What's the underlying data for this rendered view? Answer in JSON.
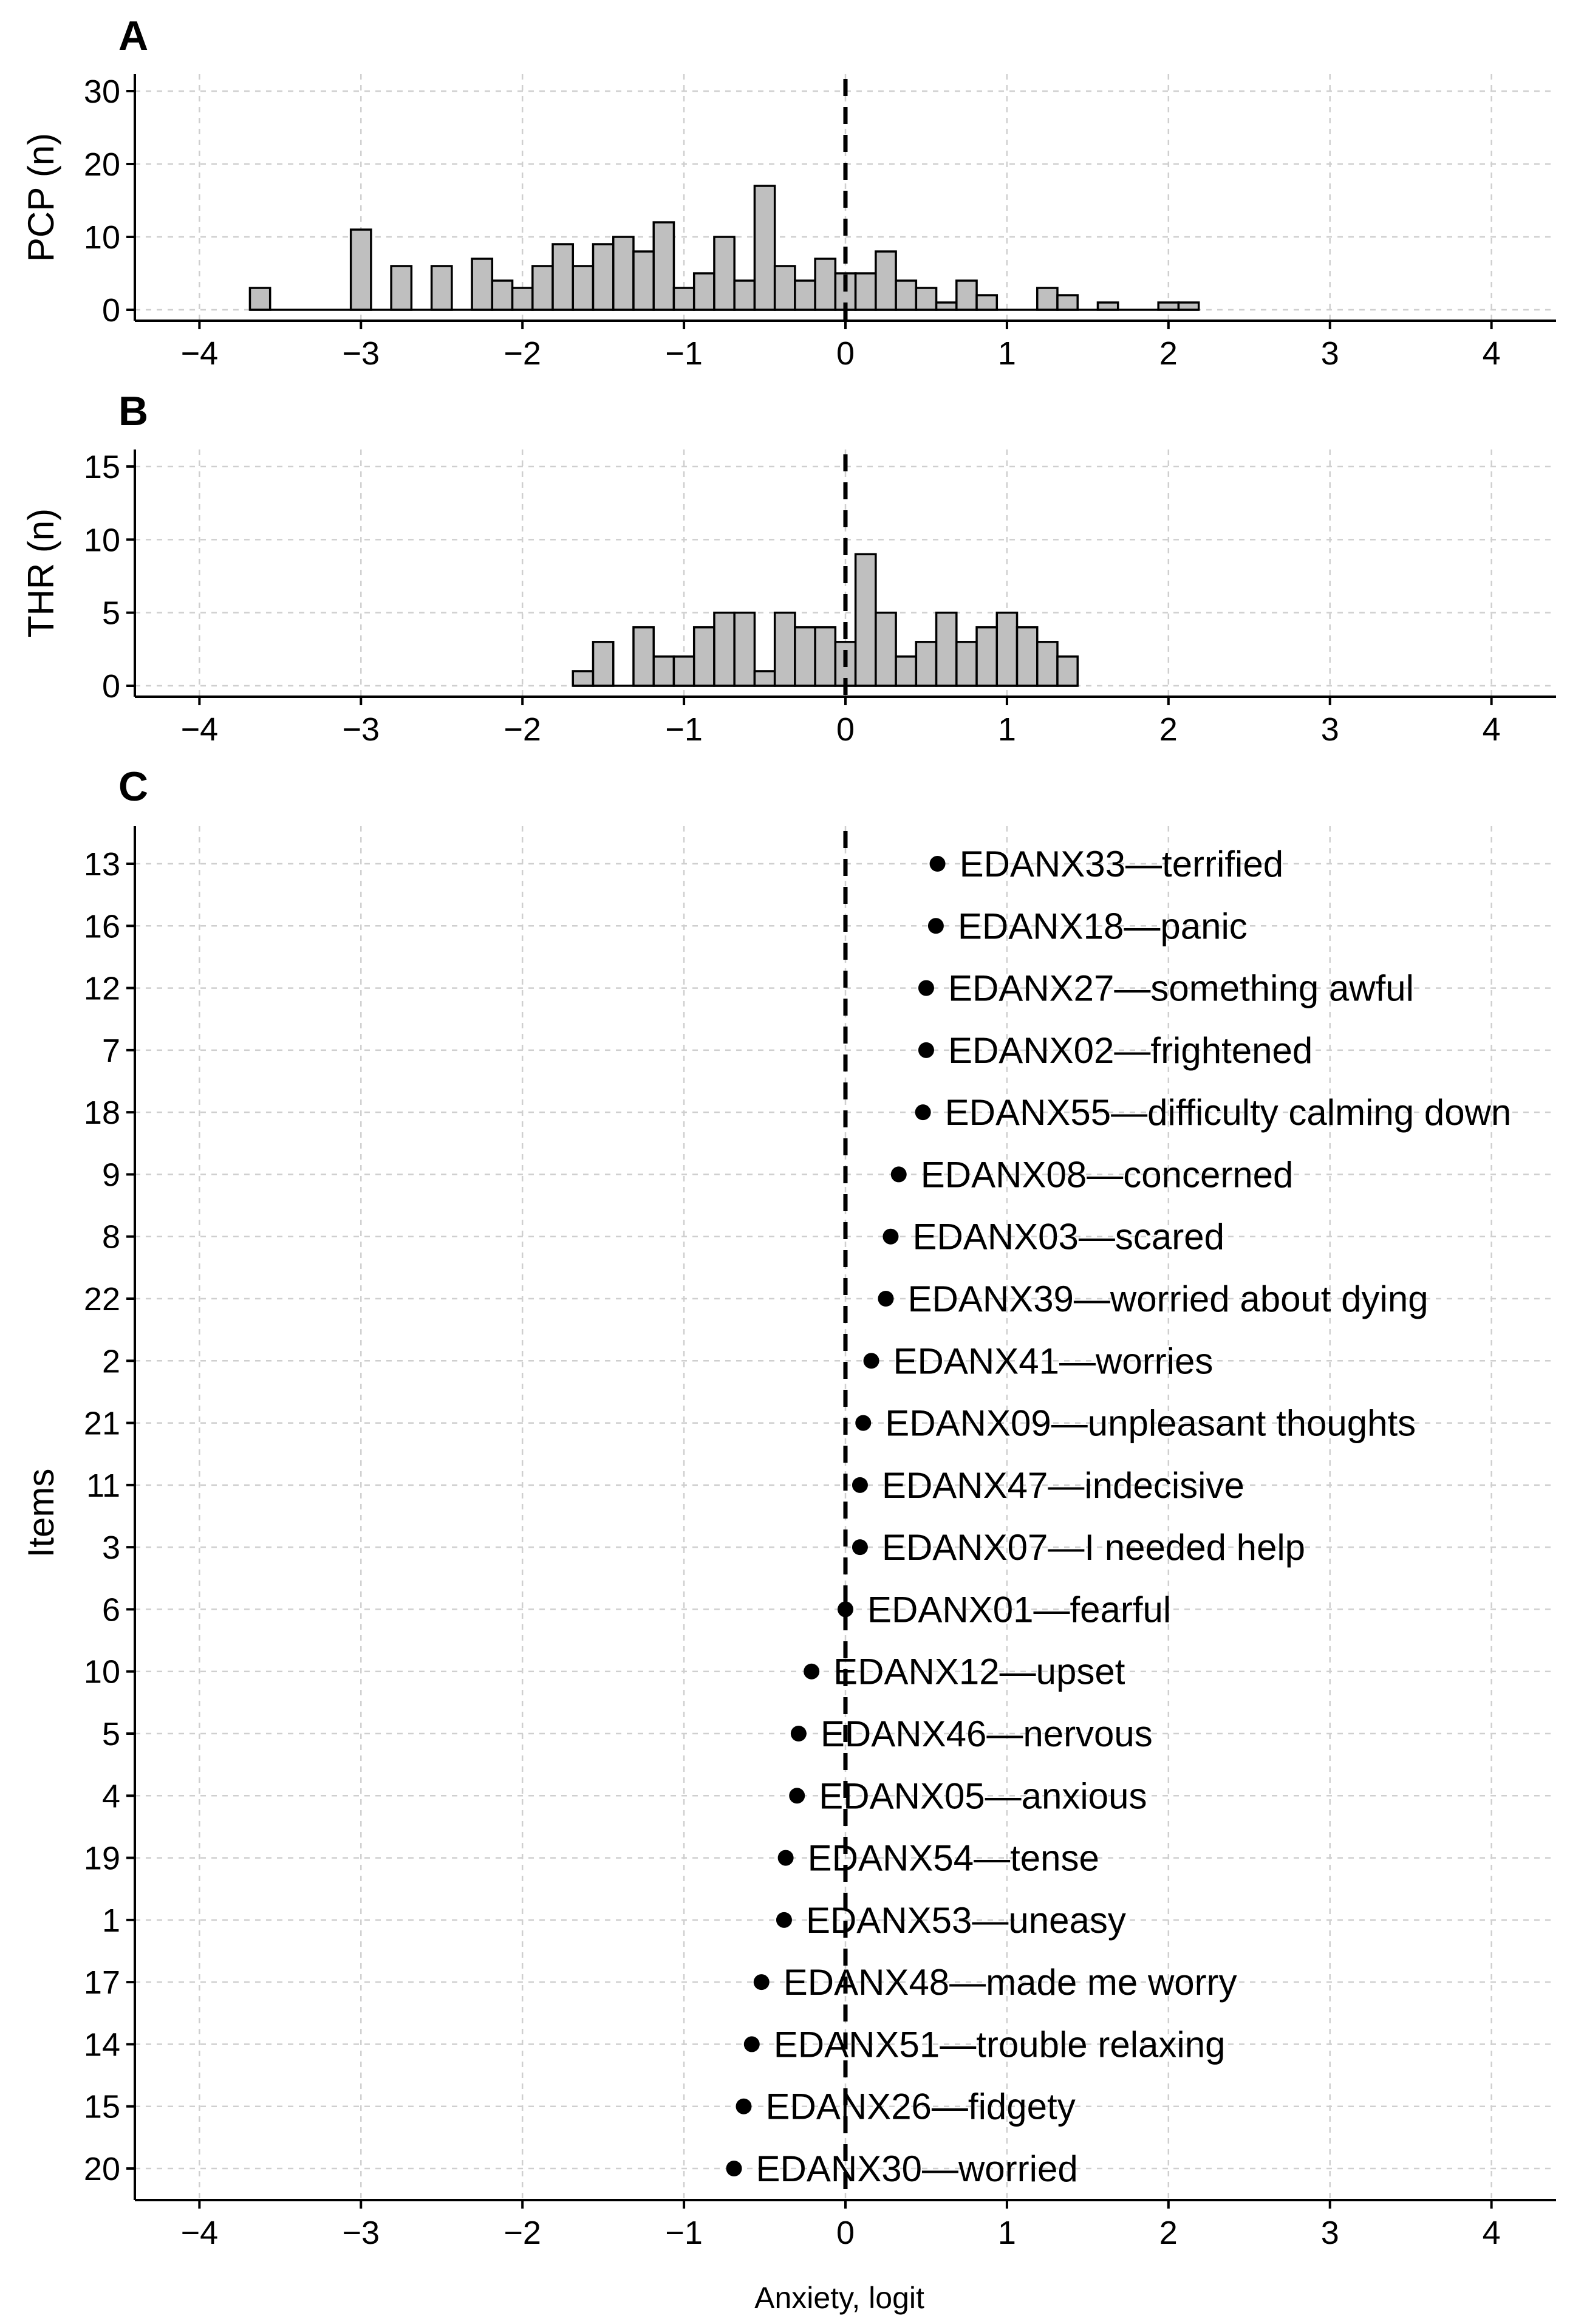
{
  "chart_data": [
    {
      "panel": "A",
      "type": "bar",
      "ylabel": "PCP (n)",
      "xlabel": "",
      "xlim": [
        -4.4,
        4.4
      ],
      "ylim": [
        0,
        30
      ],
      "xticks": [
        -4,
        -3,
        -2,
        -1,
        0,
        1,
        2,
        3,
        4
      ],
      "xtick_labels": [
        "−4",
        "−3",
        "−2",
        "−1",
        "0",
        "1",
        "2",
        "3",
        "4"
      ],
      "yticks": [
        0,
        10,
        20,
        30
      ],
      "ytick_labels": [
        "0",
        "10",
        "20",
        "30"
      ],
      "grid": true,
      "reference_line_x": 0,
      "bin_width": 0.125,
      "bins": [
        {
          "x": -3.625,
          "n": 3
        },
        {
          "x": -3.5,
          "n": 0
        },
        {
          "x": -3.375,
          "n": 0
        },
        {
          "x": -3.25,
          "n": 0
        },
        {
          "x": -3.125,
          "n": 0
        },
        {
          "x": -3.0,
          "n": 11
        },
        {
          "x": -2.875,
          "n": 0
        },
        {
          "x": -2.75,
          "n": 6
        },
        {
          "x": -2.625,
          "n": 0
        },
        {
          "x": -2.5,
          "n": 6
        },
        {
          "x": -2.375,
          "n": 0
        },
        {
          "x": -2.25,
          "n": 7
        },
        {
          "x": -2.125,
          "n": 4
        },
        {
          "x": -2.0,
          "n": 3
        },
        {
          "x": -1.875,
          "n": 6
        },
        {
          "x": -1.75,
          "n": 9
        },
        {
          "x": -1.625,
          "n": 6
        },
        {
          "x": -1.5,
          "n": 9
        },
        {
          "x": -1.375,
          "n": 10
        },
        {
          "x": -1.25,
          "n": 8
        },
        {
          "x": -1.125,
          "n": 12
        },
        {
          "x": -1.0,
          "n": 3
        },
        {
          "x": -0.875,
          "n": 5
        },
        {
          "x": -0.75,
          "n": 10
        },
        {
          "x": -0.625,
          "n": 4
        },
        {
          "x": -0.5,
          "n": 17
        },
        {
          "x": -0.375,
          "n": 6
        },
        {
          "x": -0.25,
          "n": 4
        },
        {
          "x": -0.125,
          "n": 7
        },
        {
          "x": 0.0,
          "n": 5
        },
        {
          "x": 0.125,
          "n": 5
        },
        {
          "x": 0.25,
          "n": 8
        },
        {
          "x": 0.375,
          "n": 4
        },
        {
          "x": 0.5,
          "n": 3
        },
        {
          "x": 0.625,
          "n": 1
        },
        {
          "x": 0.75,
          "n": 4
        },
        {
          "x": 0.875,
          "n": 2
        },
        {
          "x": 1.0,
          "n": 0
        },
        {
          "x": 1.125,
          "n": 0
        },
        {
          "x": 1.25,
          "n": 3
        },
        {
          "x": 1.375,
          "n": 2
        },
        {
          "x": 1.5,
          "n": 0
        },
        {
          "x": 1.625,
          "n": 1
        },
        {
          "x": 1.75,
          "n": 0
        },
        {
          "x": 1.875,
          "n": 0
        },
        {
          "x": 2.0,
          "n": 1
        },
        {
          "x": 2.125,
          "n": 1
        }
      ]
    },
    {
      "panel": "B",
      "type": "bar",
      "ylabel": "THR (n)",
      "xlabel": "",
      "xlim": [
        -4.4,
        4.4
      ],
      "ylim": [
        0,
        15
      ],
      "xticks": [
        -4,
        -3,
        -2,
        -1,
        0,
        1,
        2,
        3,
        4
      ],
      "xtick_labels": [
        "−4",
        "−3",
        "−2",
        "−1",
        "0",
        "1",
        "2",
        "3",
        "4"
      ],
      "yticks": [
        0,
        5,
        10,
        15
      ],
      "ytick_labels": [
        "0",
        "5",
        "10",
        "15"
      ],
      "grid": true,
      "reference_line_x": 0,
      "bin_width": 0.125,
      "bins": [
        {
          "x": -1.625,
          "n": 1
        },
        {
          "x": -1.5,
          "n": 3
        },
        {
          "x": -1.375,
          "n": 0
        },
        {
          "x": -1.25,
          "n": 4
        },
        {
          "x": -1.125,
          "n": 2
        },
        {
          "x": -1.0,
          "n": 2
        },
        {
          "x": -0.875,
          "n": 4
        },
        {
          "x": -0.75,
          "n": 5
        },
        {
          "x": -0.625,
          "n": 5
        },
        {
          "x": -0.5,
          "n": 1
        },
        {
          "x": -0.375,
          "n": 5
        },
        {
          "x": -0.25,
          "n": 4
        },
        {
          "x": -0.125,
          "n": 4
        },
        {
          "x": 0.0,
          "n": 3
        },
        {
          "x": 0.125,
          "n": 9
        },
        {
          "x": 0.25,
          "n": 5
        },
        {
          "x": 0.375,
          "n": 2
        },
        {
          "x": 0.5,
          "n": 3
        },
        {
          "x": 0.625,
          "n": 5
        },
        {
          "x": 0.75,
          "n": 3
        },
        {
          "x": 0.875,
          "n": 4
        },
        {
          "x": 1.0,
          "n": 5
        },
        {
          "x": 1.125,
          "n": 4
        },
        {
          "x": 1.25,
          "n": 3
        },
        {
          "x": 1.375,
          "n": 2
        }
      ]
    },
    {
      "panel": "C",
      "type": "scatter",
      "ylabel": "Items",
      "xlabel": "Anxiety, logit",
      "xlim": [
        -4.4,
        4.4
      ],
      "xticks": [
        -4,
        -3,
        -2,
        -1,
        0,
        1,
        2,
        3,
        4
      ],
      "xtick_labels": [
        "−4",
        "−3",
        "−2",
        "−1",
        "0",
        "1",
        "2",
        "3",
        "4"
      ],
      "grid": true,
      "reference_line_x": 0,
      "points": [
        {
          "item": "13",
          "x": 0.57,
          "label": "EDANX33—terrified"
        },
        {
          "item": "16",
          "x": 0.56,
          "label": "EDANX18—panic"
        },
        {
          "item": "12",
          "x": 0.5,
          "label": "EDANX27—something awful"
        },
        {
          "item": "7",
          "x": 0.5,
          "label": "EDANX02—frightened"
        },
        {
          "item": "18",
          "x": 0.48,
          "label": "EDANX55—difficulty calming down"
        },
        {
          "item": "9",
          "x": 0.33,
          "label": "EDANX08—concerned"
        },
        {
          "item": "8",
          "x": 0.28,
          "label": "EDANX03—scared"
        },
        {
          "item": "22",
          "x": 0.25,
          "label": "EDANX39—worried about dying"
        },
        {
          "item": "2",
          "x": 0.16,
          "label": "EDANX41—worries"
        },
        {
          "item": "21",
          "x": 0.11,
          "label": "EDANX09—unpleasant thoughts"
        },
        {
          "item": "11",
          "x": 0.09,
          "label": "EDANX47—indecisive"
        },
        {
          "item": "3",
          "x": 0.09,
          "label": "EDANX07—I needed help"
        },
        {
          "item": "6",
          "x": 0.0,
          "label": "EDANX01—fearful"
        },
        {
          "item": "10",
          "x": -0.21,
          "label": "EDANX12—upset"
        },
        {
          "item": "5",
          "x": -0.29,
          "label": "EDANX46—nervous"
        },
        {
          "item": "4",
          "x": -0.3,
          "label": "EDANX05—anxious"
        },
        {
          "item": "19",
          "x": -0.37,
          "label": "EDANX54—tense"
        },
        {
          "item": "1",
          "x": -0.38,
          "label": "EDANX53—uneasy"
        },
        {
          "item": "17",
          "x": -0.52,
          "label": "EDANX48—made me worry"
        },
        {
          "item": "14",
          "x": -0.58,
          "label": "EDANX51—trouble relaxing"
        },
        {
          "item": "15",
          "x": -0.63,
          "label": "EDANX26—fidgety"
        },
        {
          "item": "20",
          "x": -0.69,
          "label": "EDANX30—worried"
        }
      ]
    }
  ]
}
